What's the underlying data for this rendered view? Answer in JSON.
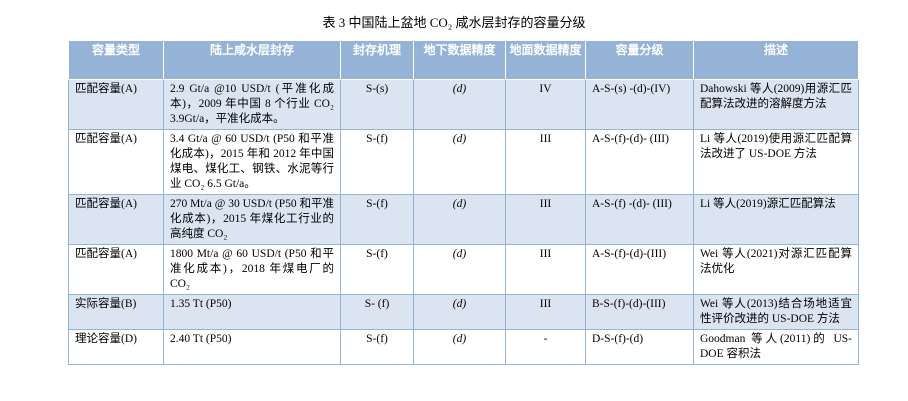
{
  "caption": "表 3  中国陆上盆地 CO₂ 咸水层封存的容量分级",
  "table": {
    "headers": [
      "容量类型",
      "陆上咸水层封存",
      "封存机理",
      "地下数据精度",
      "地面数据精度",
      "容量分级",
      "描述"
    ],
    "rows": [
      [
        "匹配容量(A)",
        "2.9 Gt/a @10 USD/t (平准化成本)，2009 年中国 8 个行业 CO₂ 3.9Gt/a，平准化成本。",
        "S-(s)",
        "(d)",
        "IV",
        "A-S-(s) -(d)-(IV)",
        "Dahowski 等人(2009)用源汇匹配算法改进的溶解度方法"
      ],
      [
        "匹配容量(A)",
        "3.4 Gt/a @ 60 USD/t (P50 和平准化成本)，2015 年和 2012 年中国煤电、煤化工、钢铁、水泥等行业 CO₂ 6.5 Gt/a。",
        "S-(f)",
        "(d)",
        "III",
        "A-S-(f)-(d)- (III)",
        "Li 等人(2019)使用源汇匹配算法改进了 US-DOE 方法"
      ],
      [
        "匹配容量(A)",
        "270 Mt/a @ 30 USD/t (P50 和平准化成本)，2015 年煤化工行业的高纯度 CO₂",
        "S-(f)",
        "(d)",
        "III",
        "A-S-(f) -(d)- (III)",
        "Li 等人(2019)源汇匹配算法"
      ],
      [
        "匹配容量(A)",
        "1800 Mt/a @ 60 USD/t (P50 和平准化成本)，2018 年煤电厂的 CO₂",
        "S-(f)",
        "(d)",
        "III",
        "A-S-(f)-(d)-(III)",
        "Wei 等人(2021)对源汇匹配算法优化"
      ],
      [
        "实际容量(B)",
        "1.35 Tt (P50)",
        "S- (f)",
        "(d)",
        "III",
        "B-S-(f)-(d)-(III)",
        "Wei 等人(2013)结合场地适宜性评价改进的 US-DOE 方法"
      ],
      [
        "理论容量(D)",
        "2.40 Tt (P50)",
        "S-(f)",
        "(d)",
        "-",
        "D-S-(f)-(d)",
        "Goodman 等人(2011)的 US-DOE 容积法"
      ]
    ]
  }
}
